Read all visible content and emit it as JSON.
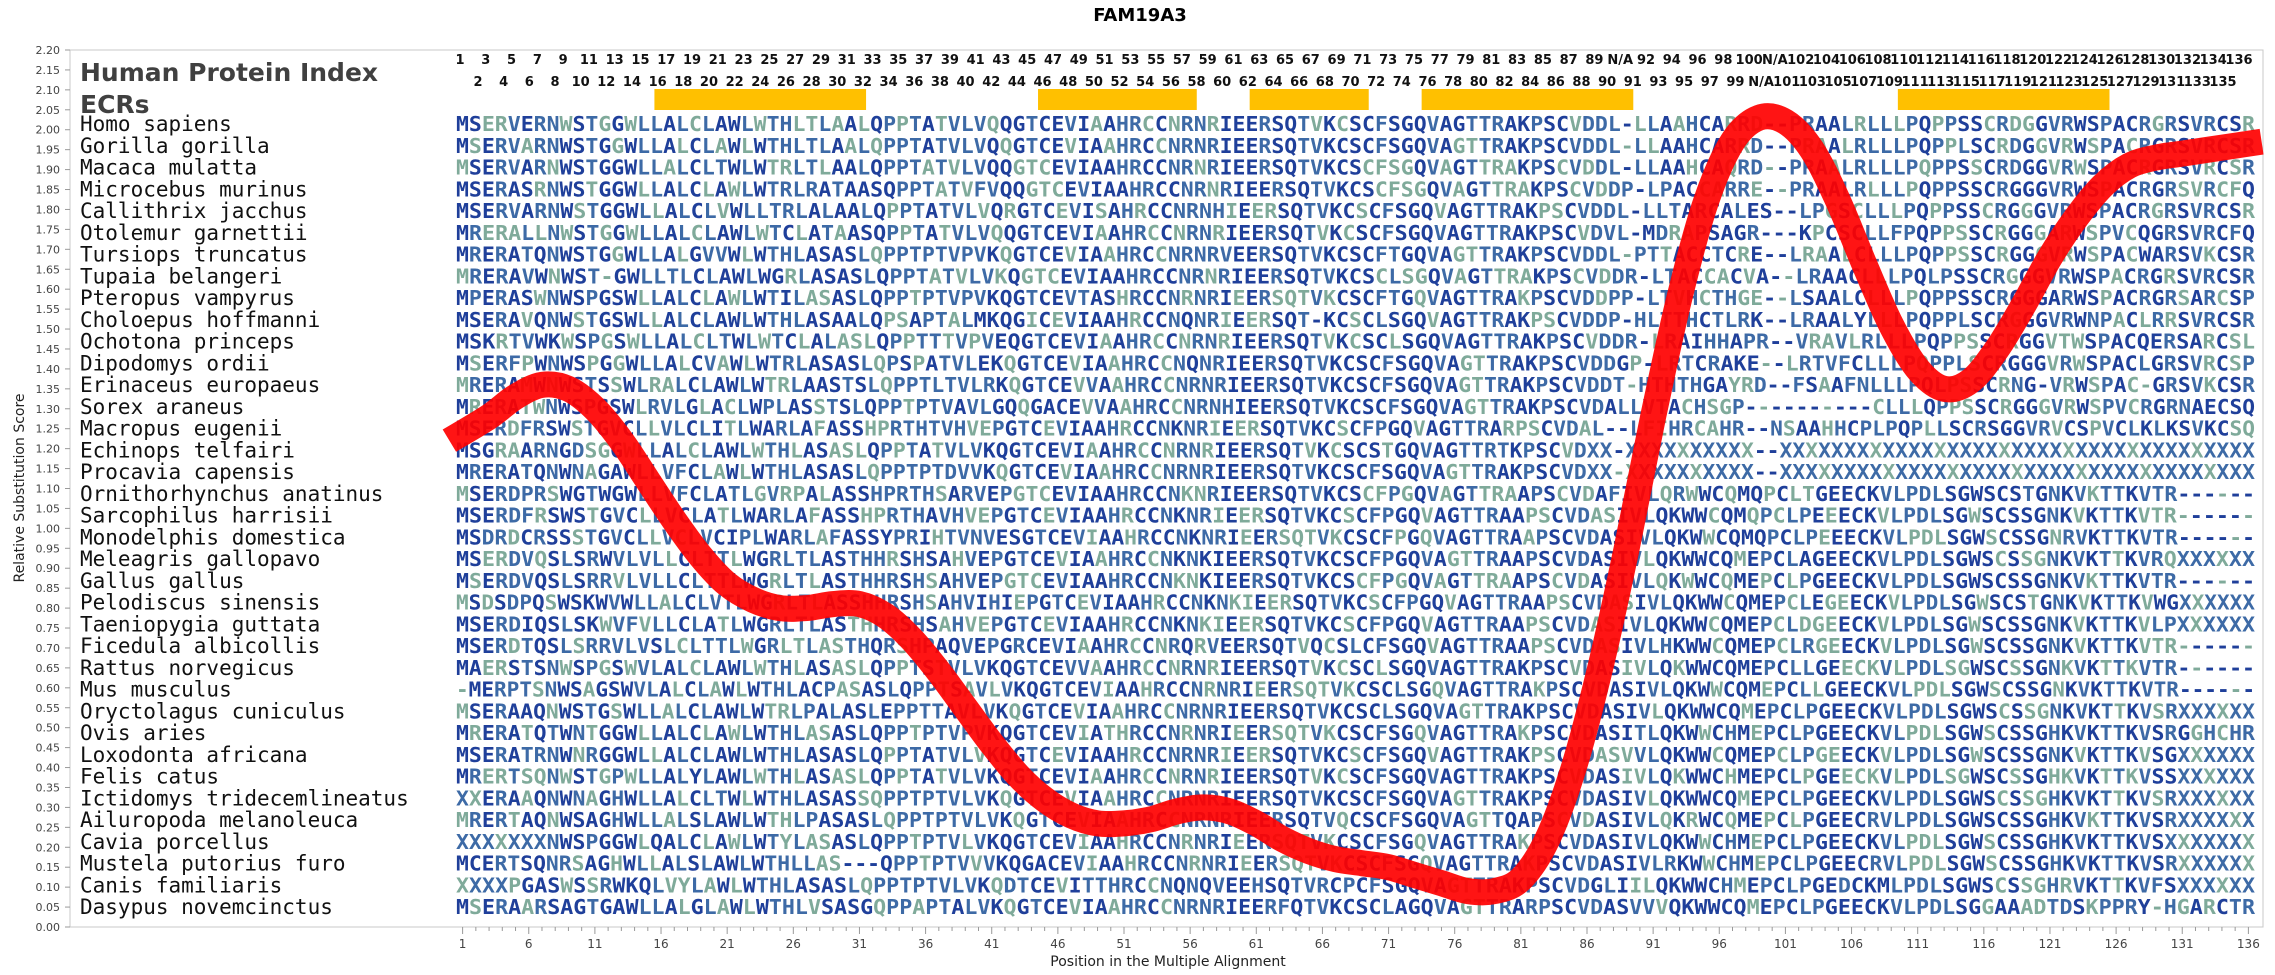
{
  "chart_data": {
    "type": "line",
    "title": "FAM19A3",
    "xlabel": "Position in the Multiple Alignment",
    "ylabel": "Relative Substitution Score",
    "ylim": [
      0,
      2.2
    ],
    "xlim": [
      1,
      136
    ],
    "y_ticks": [
      "0.00",
      "0.05",
      "0.10",
      "0.15",
      "0.20",
      "0.25",
      "0.30",
      "0.35",
      "0.40",
      "0.45",
      "0.50",
      "0.55",
      "0.60",
      "0.65",
      "0.70",
      "0.75",
      "0.80",
      "0.85",
      "0.90",
      "0.95",
      "1.00",
      "1.05",
      "1.10",
      "1.15",
      "1.20",
      "1.25",
      "1.30",
      "1.35",
      "1.40",
      "1.45",
      "1.50",
      "1.55",
      "1.60",
      "1.65",
      "1.70",
      "1.75",
      "1.80",
      "1.85",
      "1.90",
      "1.95",
      "2.00",
      "2.05",
      "2.10",
      "2.15",
      "2.20"
    ],
    "x_ticks": [
      "1",
      "6",
      "11",
      "16",
      "21",
      "26",
      "31",
      "36",
      "41",
      "46",
      "51",
      "56",
      "61",
      "66",
      "71",
      "76",
      "81",
      "86",
      "91",
      "96",
      "101",
      "106",
      "111",
      "116",
      "121",
      "126",
      "131",
      "136"
    ],
    "grid": false,
    "legend": "none",
    "series": [
      {
        "x": [
          0,
          3,
          5,
          7,
          9,
          11,
          13,
          15,
          17,
          19,
          21,
          23,
          25,
          27,
          29,
          31,
          33,
          35,
          37,
          39,
          41,
          43,
          45,
          47,
          49,
          51,
          53,
          55,
          57,
          59,
          61,
          63,
          65,
          67,
          69,
          71,
          73,
          75,
          77,
          79,
          81,
          83,
          85,
          87,
          89,
          91,
          93,
          95,
          97,
          99,
          101,
          103,
          105,
          107,
          109,
          111,
          113,
          115,
          117,
          119,
          121,
          123,
          125,
          127,
          129,
          131,
          133,
          135,
          137
        ],
        "values": [
          1.22,
          1.28,
          1.33,
          1.36,
          1.35,
          1.3,
          1.22,
          1.12,
          1.02,
          0.93,
          0.86,
          0.82,
          0.8,
          0.8,
          0.81,
          0.81,
          0.78,
          0.72,
          0.64,
          0.55,
          0.46,
          0.38,
          0.32,
          0.28,
          0.26,
          0.26,
          0.27,
          0.29,
          0.3,
          0.29,
          0.26,
          0.22,
          0.19,
          0.17,
          0.16,
          0.15,
          0.13,
          0.11,
          0.09,
          0.09,
          0.12,
          0.22,
          0.4,
          0.65,
          0.95,
          1.28,
          1.58,
          1.82,
          1.97,
          2.03,
          2.02,
          1.95,
          1.82,
          1.66,
          1.51,
          1.4,
          1.35,
          1.37,
          1.45,
          1.56,
          1.68,
          1.78,
          1.86,
          1.91,
          1.93,
          1.94,
          1.95,
          1.96,
          1.97
        ],
        "color": "#ff0000"
      }
    ]
  },
  "header": {
    "index_label": "Human Protein Index",
    "ecr_label": "ECRs",
    "index_top": [
      "1",
      "3",
      "5",
      "7",
      "9",
      "11",
      "13",
      "15",
      "17",
      "19",
      "21",
      "23",
      "25",
      "27",
      "29",
      "31",
      "33",
      "35",
      "37",
      "39",
      "41",
      "43",
      "45",
      "47",
      "49",
      "51",
      "53",
      "55",
      "57",
      "59",
      "61",
      "63",
      "65",
      "67",
      "69",
      "71",
      "73",
      "75",
      "77",
      "79",
      "81",
      "83",
      "85",
      "87",
      "89",
      "N/A",
      "92",
      "94",
      "96",
      "98",
      "100",
      "N/A",
      "102",
      "104",
      "106",
      "108",
      "110",
      "112",
      "114",
      "116",
      "118",
      "120",
      "122",
      "124",
      "126",
      "128",
      "130",
      "132",
      "134",
      "136"
    ],
    "index_bottom": [
      "2",
      "4",
      "6",
      "8",
      "10",
      "12",
      "14",
      "16",
      "18",
      "20",
      "22",
      "24",
      "26",
      "28",
      "30",
      "32",
      "34",
      "36",
      "38",
      "40",
      "42",
      "44",
      "46",
      "48",
      "50",
      "52",
      "54",
      "56",
      "58",
      "60",
      "62",
      "64",
      "66",
      "68",
      "70",
      "72",
      "74",
      "76",
      "78",
      "80",
      "82",
      "84",
      "86",
      "88",
      "90",
      "91",
      "93",
      "95",
      "97",
      "99",
      "N/A",
      "101",
      "103",
      "105",
      "107",
      "109",
      "111",
      "113",
      "115",
      "117",
      "119",
      "121",
      "123",
      "125",
      "127",
      "129",
      "131",
      "133",
      "135"
    ],
    "ecr_bars": [
      [
        16,
        31
      ],
      [
        45,
        56
      ],
      [
        61,
        69
      ],
      [
        74,
        89
      ],
      [
        110,
        125
      ]
    ],
    "ecr_color": "#ffc000"
  },
  "alignment": {
    "species": [
      "Homo sapiens",
      "Gorilla gorilla",
      "Macaca mulatta",
      "Microcebus murinus",
      "Callithrix jacchus",
      "Otolemur garnettii",
      "Tursiops truncatus",
      "Tupaia belangeri",
      "Pteropus vampyrus",
      "Choloepus hoffmanni",
      "Ochotona princeps",
      "Dipodomys ordii",
      "Erinaceus europaeus",
      "Sorex araneus",
      "Macropus eugenii",
      "Echinops telfairi",
      "Procavia capensis",
      "Ornithorhynchus anatinus",
      "Sarcophilus harrisii",
      "Monodelphis domestica",
      "Meleagris gallopavo",
      "Gallus gallus",
      "Pelodiscus sinensis",
      "Taeniopygia guttata",
      "Ficedula albicollis",
      "Rattus norvegicus",
      "Mus musculus",
      "Oryctolagus cuniculus",
      "Ovis aries",
      "Loxodonta africana",
      "Felis catus",
      "Ictidomys tridecemlineatus",
      "Ailuropoda melanoleuca",
      "Cavia porcellus",
      "Mustela putorius furo",
      "Canis familiaris",
      "Dasypus novemcinctus"
    ],
    "sequences": [
      "MSERVERNWSTGGWLLALCLAWLWTHLTLAALQPPTATVLVQQGTCEVIAAHRCCNRNRIEERSQTVKCSCFSGQVAGTTRAKPSCVDDL-LLAAHCARRD--PRAALRLLLPQPPSSCRDGGVRWSPACRGRSVRCSR",
      "MSERVARNWSTGGWLLALCLAWLWTHLTLAALQPPTATVLVQQGTCEVIAAHRCCNRNRIEERSQTVKCSCFSGQVAGTTRAKPSCVDDL-LLAAHCARRD--PRAALRLLLPQPPLSCRDGGVRWSPACRGRSVRCSR",
      "MSERVARNWSTGGWLLALCLTWLWTRLTLAALQPPTATVLVQQGTCEVIAAHRCCNRNRIEERSQTVKCSCFSGQVAGTTRAKPSCVDDL-LLAAHCAQRD--PRAALRLLLPQPPSSCRDGGVRWSPACRGRSVRCSR",
      "MSERASRNWSTGGWLLALCLAWLWTRLRATAASQPPTATVFVQQGTCEVIAAHRCCNRNRIEERSQTVKCSCFSGQVAGTTRAKPSCVDDP-LPACCARRE--PRAALRLLLPQPPSSCRGGGVRWSPACRGRSVRCFQ",
      "MSERVARNWSTGGWLLALCLVWLLTRLALAALQPPTATVLVQRGTCEVISAHRCCNRNHIEERSQTVKCSCFSGQVAGTTRAKPSCVDDL-LLTARCALES--LPGSCLLLPQPPSSCRGGGVRWSPACRGRSVRCSR",
      "MRERALLNWSTGGWLLALCLAWLWTCLATAASQPPTATVLVQQGTCEVIAAHRCCNRNRIEERSQTVKCSCFSGQVAGTTRAKPSCVDVL-MDRAPSAGR---KPCSCLLFPQPPSSCRGGGARWSPVCQGRSVRCFQ",
      "MRERATQNWSTGGWLLALGVVWLWTHLASASLQPPTPTVPVKQGTCEVIAAHRCCNRNRVEERSQTVKCSCFTGQVAGTTRAKPSCVDDL-PTTACCTCRE--LRAALCLLLPQPPSSCRGGGVRWSPACWARSVKCSR",
      "MRERAVWNWST-GWLLTLCLAWLWGRLASASLQPPTATVLVKQGTCEVIAAHRCCNRNRIEERSQTVKCSCLSGQVAGTTRAKPSCVDDR-LTACCACVA--LRAACLLLPQLPSSCRGGGVRWSPACRGRSVRCSR",
      "MPERASWNWSPGSWLLALCLAWLWTILASASLQPPTPTVPVKQGTCEVTASHRCCNRNRIEERSQTVKCSCFTGQVAGTTRAKPSCVDDPP-LTVHCTHGE--LSAALCLLLPQPPSSCRGGGARWSPACRGRSARCSP",
      "MSERAVQNWSTGSWLLALCLAWLWTHLASAALQPSAPTALMKQGICEVIAAHRCCNQNRIEERSQT-KCSCLSGQVAGTTRAKPSCVDDP-HLTTHCTLRK--LRAALYLLLPQPPLSCRGGGVRWNPACLRRSVRCSR",
      "MSKRTVWKWSPGSWLLALCLTWLWTCLALASLQPPTTTVPVEQGTCEVIAAHRCCNRNRIEERSQTVKCSCLSGQVAGTTRAKPSCVDDR-LRAIHHAPR--VRAVLRLLLPQPPSSCRGGVTWSPACQERSARCSL",
      "MSERFPWNWSPGGWLLALCVAWLWTRLASASLQPSPATVLEKQGTCEVIAAHRCCNQNRIEERSQTVKCSCFSGQVAGTTRAKPSCVDDGP-LRTCRAKE--LRTVFCLLLPQPPLSCRGGGVRWSPACLGRSVRCSP",
      "MRERAMWNWSTSSWLRALCLAWLWTRLAASTSLQPPTLTVLRKQGTCEVVAAHRCCNRNRIEERSQTVKCSCFSGQVAGTTRAKPSCVDDT-HTHTHGAYRD--FSAAFNLLLPQLPSSCRNG-VRWSPAC-GRSVKCSR",
      "MRERATWNWSPGSWLRVLGLACLWPLASSTSLQPPTPTVAVLGQQGACEVVAAHRCCNRNHIEERSQTVKCSCFSGQVAGTTRAKPSCVDALLVTACHSGP----------CLLLQPPSSCRGGGVRWSPVCRGRNAECSQ",
      "MSERDFRSWSTGVCLLVLCLITLWARLAFASSHPRTHTVHVEPGTCEVIAAHRCCNKNRIEERSQTVKCSCFPGQVAGTTRARPSCVDAL--LFIHRCAHR--NSAAHHCPLPQPLLSCRSGGVRVCSPVCLKLKSVKCSQ",
      "MSGRAARNGDSGGWLLALCLAWLWTHLASASLQPPTATVLVKQGTCEVIAAHRCCNRNRIEERSQTVKCSCSTGQVAGTTRTKPSCVDXX-XXXXXXXXXX--XXXXXXXXXXXXXXXXXXXXXXXXXXXXXXXXXXXXX",
      "MRERATQNWNAGAWLLVFCLAWLWTHLASASLQPPTPTDVVKQGTCEVIAAHRCCNRNRIEERSQTVKCSCFSGQVAGTTRAKPSCVDXX-XXXXXXXXXX--XXXXXXXXXXXXXXXXXXXXXXXXXXXXXXXXXXXXX",
      "MSERDPRSWGTWGWLLVFCLATLGVRPALASSHPRTHSARVEPGTCEVIAAHRCCNKNRIEERSQTVKCSCFPGQVAGTTRAAPSCVDAFIVLQRWWCQMQPCLTGEECKVLPDLSGWSCSTGNKVKTTKVTR------",
      "MSERDFRSWSTGVCLLVCLATLWARLAFASSHPRTHAVHVEPGTCEVIAAHRCCNKNRIEERSQTVKCSCFPGQVAGTTRAAPSCVDASIVLQKWWCQMQPCLPEEECKVLPDLSGWSCSSGNKVKTTKVTR------",
      "MSDRDCRSSSTGVCLLVCLVCIPLWARLAFASSYPRIHTVNVESGTCEVIAAHRCCNKNRIEERSQTVKCSCFPGQVAGTTRAAPSCVDASIVLQKWWCQMQPCLPEEECKVLPDLSGWSCSSGNRVKTTKVTR------",
      "MSERDVQSLSRWVLVLLCLTTLWGRLTLASTHHRSHSAHVEPGTCEVIAAHRCCNKNKIEERSQTVKCSCFPGQVAGTTRAAPSCVDASIVLQKWWCQMEPCLAGEECKVLPDLSGWSCSSGNKVKTTKVRQXXXXXX",
      "MSERDVQSLSRRVLVLLCLTTLWGRLTLASTHHRSHSAHVEPGTCEVIAAHRCCNKNKIEERSQTVKCSCFPGQVAGTTRAAPSCVDASIVLQKWWCQMEPCLPGEECKVLPDLSGWSCSSGNKVKTTKVTR------",
      "MSDSDPQSWSKWVWLLALCLVTLWGRLTLASSHHRSHSAHVIHIEPGTCEVIAAHRCCNKNKIEERSQTVKCSCFPGQVAGTTRAAPSCVDASIVLQKWWCQMEPCLEGEECKVLPDLSGWSCSTGNKVKTTKVWGXXXXXX",
      "MSERDIQSLSKWVFVLLCLATLWGRLTLASTHHRSHSAHVEPGTCEVIAAHRCCNKNKIEERSQTVKCSCFPGQVAGTTRAAPSCVDASIVLQKWWCQMEPCLDGEECKVLPDLSGWSCSSGNKVKTTKVLPXXXXXX",
      "MSERDTQSLSRRVLVSLCLTTLWGRLTLASTHQRSHPAQVEPGRCEVIAAHRCCNRQRVEERSQTVQCSLCFSGQVAGTTRAAPSCVDASIVLHKWWCQMEPCLRGEECKVLPDLSGWSCSSGNKVKTTKVTR------",
      "MAERSTSNWSPGSWVLALCLAWLWTHLASASLQPPTSTVLVKQGTCEVVAAHRCCNRNRIEERSQTVKCSCLSGQVAGTTRAKPSCVDASIVLQKWWCQMEPCLLGEECKVLPDLSGWSCSSGNKVKTTKVTR------",
      "-MERPTSNWSAGSWVLALCLAWLWTHLACPASASLQPPTSAVLVKQGTCEVIAAHRCCNRNRIEERSQTVKCSCLSGQVAGTTRAKPSCVDASIVLQKWWCQMEPCLLGEECKVLPDLSGWSCSSGNKVKTTKVTR------",
      "MSERAAQNWSTGSWLLALCLAWLWTRLPALASLEPPTTAVLVKQGTCEVIAAHRCCNRNRIEERSQTVKCSCLSGQVAGTTRAKPSCVDASIVLQKWWCQMEPCLPGEECKVLPDLSGWSCSSGNKVKTTKVSRXXXXXX",
      "MRERATQTWNTGGWLLALCLAWLWTHLASASLQPPTPTVPVKQGTCEVIATHRCCNRNRIEERSQTVKCSCFSGQVAGTTRAKPSCVDASITLQKWWCHMEPCLPGEECKVLPDLSGWSCSSGHKVKTTKVSRGGHCHR",
      "MSERATRNWNRGGWLLALCLAWLWTHLASASLQPPTATVLVKQGTCEVIAAHRCCNRNRIEERSQTVKCSCFSGQVAGTTRAKPSCVDASVVLQKWWCQMEPCLPGEECKVLPDLSGWSCSSGNKVKTTKVSGXXXXXX",
      "MRERTSQNWSTGPWLLALYLAWLWTHLASASLQPPTATVLVKQGTCEVIAAHRCCNRNRIEERSQTVKCSCFSGQVAGTTRAKPSCVDASIVLQKWWCHMEPCLPGEECKVLPDLSGWSCSSGHKVKTTKVSSXXXXXX",
      "XXERAAQNWNAGHWLLALCLTWLWTHLASASSQPPTPTVLVKQGTCEVIAAHRCCNRNRIEERSQTVKCSCFSGQVAGTTRAKPSCVDASIVLQKWWCQMEPCLPGEECKVLPDLSGWSCSSGHKVKTTKVSRXXXXXX",
      "MRERTAQNWSAGHWLLALSLAWLWTHLPASASLQPPTPTVLVKQGTCEVIAAHRCCNRNRIEERSQTVQCSCFSGQVAGTTQAPSCVDASIVLQKRWCQMEPCLPGEECRVLPDLSGWSCSSGHKVKTTKVSRXXXXXX",
      "XXXXXXXNWSPGGWLQALCLAWLWTYLASASLQPPTPTVLVKQGTCEVIAAHRCCNRNRIEERSQTVKCSCFSGQVAGTTRAKPSCVDASIVLQKWWCHMEPCLPGEECKVLPDLSGWSCSSGHKVKTTKVSXXXXXXX",
      "MCERTSQNRSAGHWLLALSLAWLWTHLLAS---QPPTPTVVVKQGACEVIAAHRCCNRNRIEERSQTVKCSCFSGQVAGTTRAKPSCVDASIVLRKWWCHMEPCLPGEECRVLPDLSGWSCSSGHKVKTTKVSRXXXXXX",
      "XXXXPGASWSSRWKQLVYLAWLWTHLASASLQPPTPTVLVKQDTCEVITTHRCCNQNQVEEHSQTVRCPCFSGQVAGTTRAKPSCVDGLIILQKWWCHMEPCLPGEDCKMLPDLSGWSCSSGHRVKTTKVFSXXXXXX",
      "MSERAARSAGTGAWLLALGLAWLWTHLVSASGQPPAPTALVKQGTCEVIAAHRCCNRNRIEERFQTVKCSCLAGQVAGTTRARPSCVDASVVVQKWWCQMEPCLPGEECKVLPDLSGGAAADTDSKPPRY-HGARCTR"
    ]
  }
}
